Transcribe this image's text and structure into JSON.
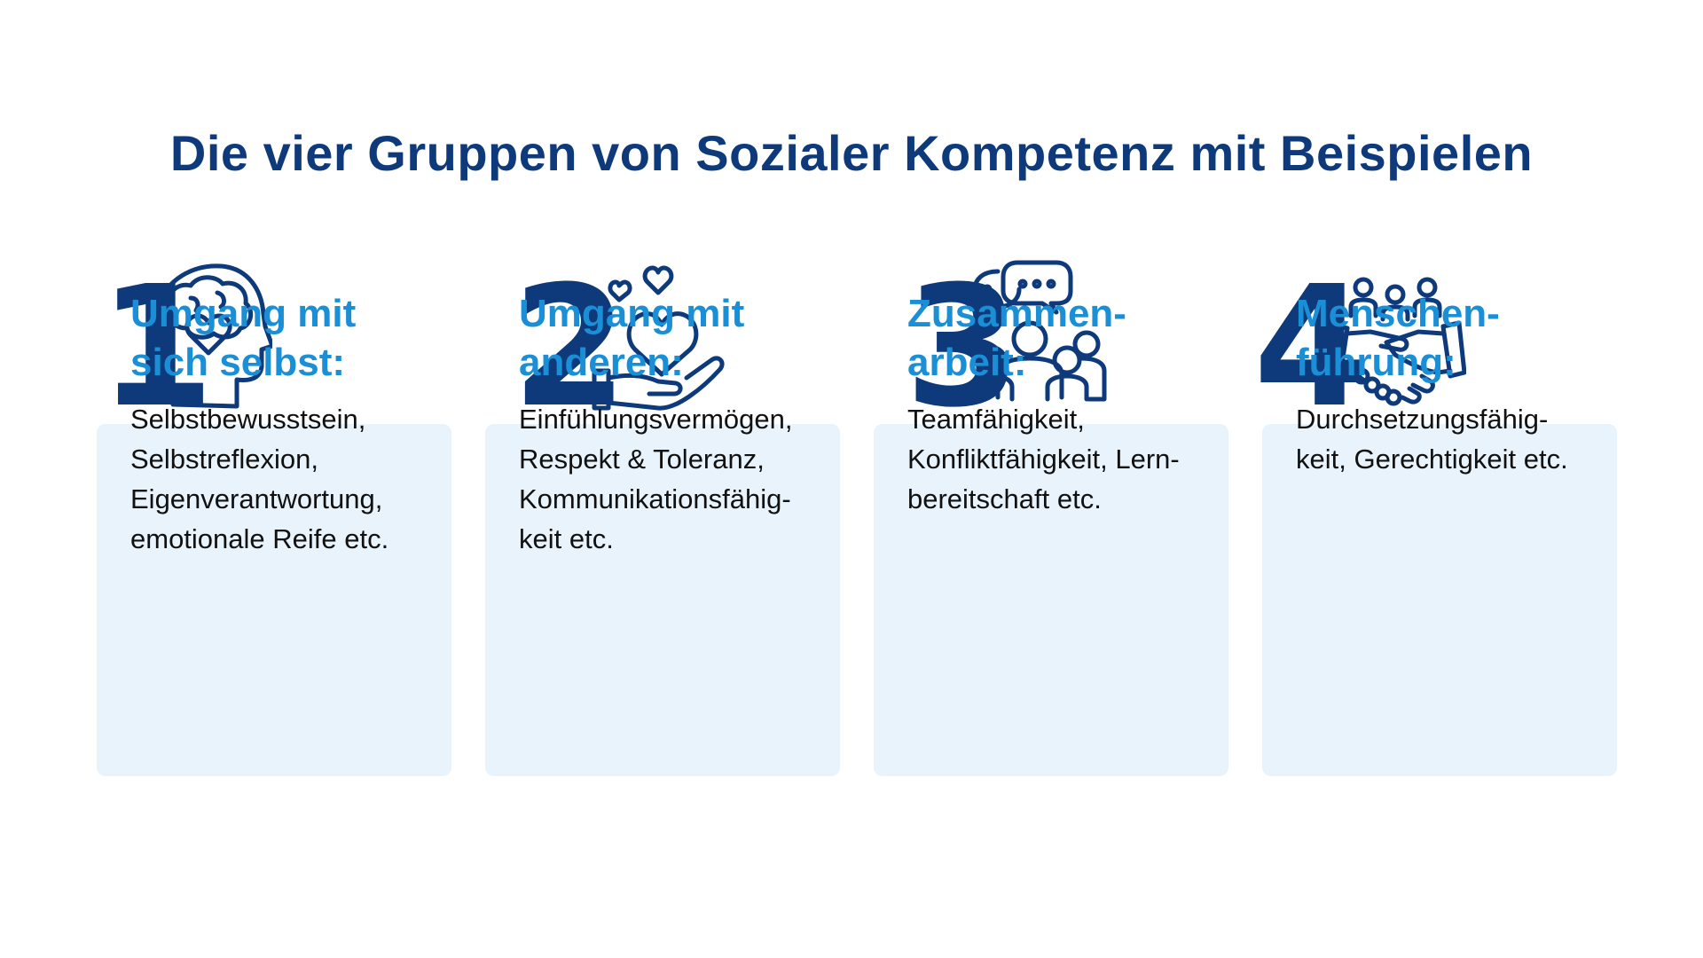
{
  "title": "Die vier Gruppen von Sozialer Kompetenz mit Beispielen",
  "colors": {
    "title": "#0e3a7b",
    "heading": "#1a8fd6",
    "card_bg": "#e8f3fb",
    "number": "#0e3a7b"
  },
  "groups": [
    {
      "number": "1",
      "icon": "head-heart-brain-icon",
      "heading": "Umgang mit\nsich selbst:",
      "text": "Selbstbewusstsein,\nSelbstreflexion,\nEigenverantwortung,\nemotionale Reife etc."
    },
    {
      "number": "2",
      "icon": "hand-holding-heart-icon",
      "heading": "Umgang mit\nanderen:",
      "text": "Einfühlungsvermögen,\nRespekt & Toleranz,\nKommunikationsfähig-\nkeit etc."
    },
    {
      "number": "3",
      "icon": "group-chat-icon",
      "heading": "Zusammen-\narbeit:",
      "text": "Teamfähigkeit,\nKonfliktfähigkeit, Lern-\nbereitschaft etc."
    },
    {
      "number": "4",
      "icon": "handshake-team-icon",
      "heading": "Menschen-\nführung:",
      "text": "Durchsetzungsfähig-\nkeit, Gerechtigkeit etc."
    }
  ]
}
